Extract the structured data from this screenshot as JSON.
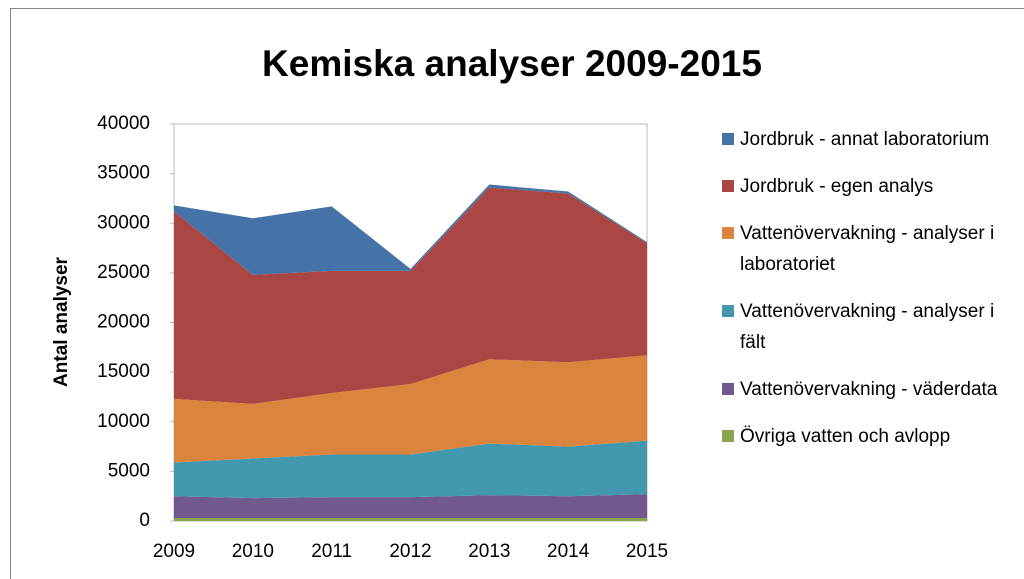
{
  "chart_data": {
    "type": "stacked_area",
    "title": "Kemiska analyser 2009-2015",
    "y_label": "Antal analyser",
    "categories": [
      "2009",
      "2010",
      "2011",
      "2012",
      "2013",
      "2014",
      "2015"
    ],
    "series": [
      {
        "name": "Jordbruk - annat laboratorium",
        "color": "#4573a7",
        "values": [
          600,
          5700,
          6500,
          200,
          300,
          200,
          100
        ]
      },
      {
        "name": "Jordbruk - egen analys",
        "color": "#aa4643",
        "values": [
          18900,
          13000,
          12300,
          11400,
          17300,
          17000,
          11300
        ]
      },
      {
        "name": "Vattenövervakning - analyser i laboratoriet",
        "color": "#db843d",
        "values": [
          6400,
          5500,
          6200,
          7100,
          8500,
          8500,
          8600
        ]
      },
      {
        "name": "Vattenövervakning - analyser i fält",
        "color": "#4198af",
        "values": [
          3400,
          4000,
          4300,
          4300,
          5200,
          5000,
          5400
        ]
      },
      {
        "name": "Vattenövervakning - väderdata",
        "color": "#71588f",
        "values": [
          2200,
          2000,
          2100,
          2100,
          2300,
          2200,
          2400
        ]
      },
      {
        "name": "Övriga vatten och avlopp",
        "color": "#89a54e",
        "values": [
          300,
          300,
          300,
          300,
          300,
          300,
          300
        ]
      }
    ],
    "ylim": [
      0,
      40000
    ],
    "yticks": [
      0,
      5000,
      10000,
      15000,
      20000,
      25000,
      30000,
      35000,
      40000
    ],
    "grid": false,
    "legend": "right"
  }
}
